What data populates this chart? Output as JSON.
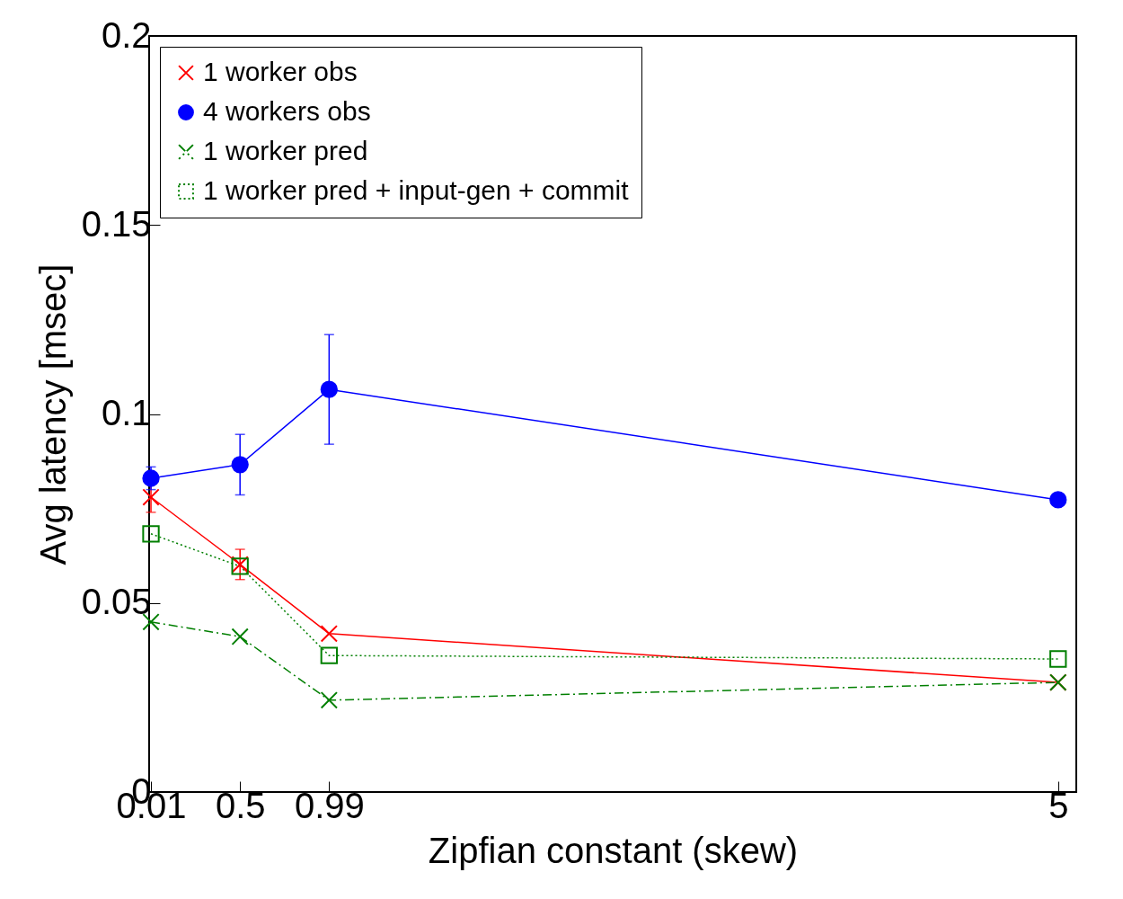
{
  "chart_data": {
    "type": "line",
    "xlabel": "Zipfian constant (skew)",
    "ylabel": "Avg latency [msec]",
    "x": [
      0.01,
      0.5,
      0.99,
      5
    ],
    "xlim": [
      0,
      5.1
    ],
    "xticks": [
      0.01,
      0.5,
      0.99,
      5
    ],
    "ylim": [
      0,
      0.2
    ],
    "yticks": [
      0,
      0.05,
      0.1,
      0.15,
      0.2
    ],
    "grid": false,
    "legend": "top left",
    "series": [
      {
        "name": "1 worker obs",
        "color": "#ff0000",
        "marker": "cross",
        "line_style": "solid",
        "values": [
          0.078,
          0.0602,
          0.0419,
          0.029
        ],
        "errors": [
          0.004,
          0.004,
          null,
          null
        ]
      },
      {
        "name": "4 workers obs",
        "color": "#0000ff",
        "marker": "circle",
        "line_style": "solid",
        "values": [
          0.083,
          0.0866,
          0.1065,
          0.0773
        ],
        "errors": [
          0.003,
          0.008,
          0.0145,
          null
        ]
      },
      {
        "name": "1 worker pred",
        "color": "#007f00",
        "marker": "cross",
        "line_style": "dashed",
        "values": [
          0.045,
          0.0411,
          0.0243,
          0.029
        ]
      },
      {
        "name": "1 worker pred + input-gen + commit",
        "color": "#007f00",
        "marker": "square",
        "line_style": "dotted",
        "values": [
          0.0683,
          0.0597,
          0.0361,
          0.0352
        ]
      }
    ]
  }
}
